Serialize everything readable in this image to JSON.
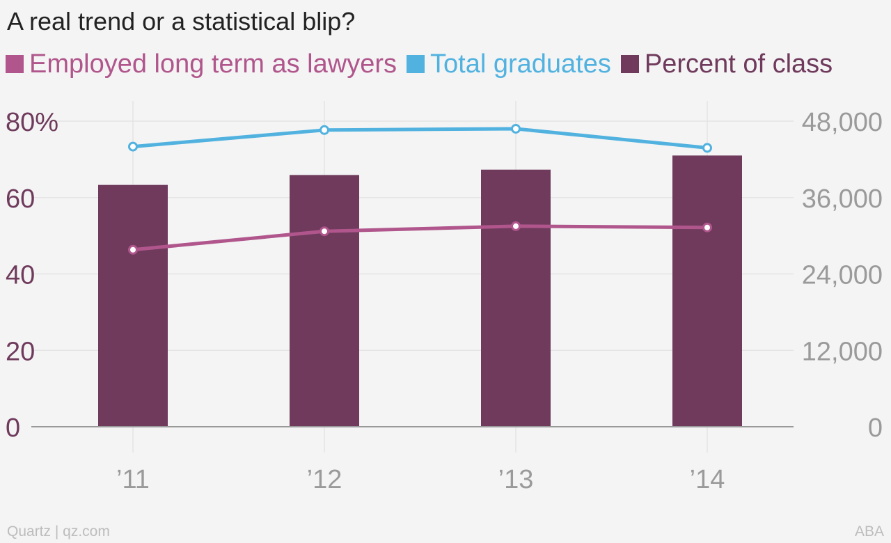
{
  "title": "A real trend or a statistical blip?",
  "footer": {
    "source_left": "Quartz | qz.com",
    "source_right": "ABA"
  },
  "colors": {
    "employed": "#b0568c",
    "graduates": "#51b2e0",
    "percent": "#6f3a5c",
    "left_axis_text": "#6f3a5c",
    "right_axis_text": "#9a9a9a",
    "grid": "#e4e4e4",
    "baseline": "#9a9a9a"
  },
  "legend": [
    {
      "label": "Employed long term as lawyers",
      "color": "#b0568c"
    },
    {
      "label": "Total graduates",
      "color": "#51b2e0"
    },
    {
      "label": "Percent of class",
      "color": "#6f3a5c"
    }
  ],
  "chart_data": {
    "type": "bar",
    "title": "A real trend or a statistical blip?",
    "categories": [
      "’11",
      "’12",
      "’13",
      "’14"
    ],
    "xlabel": "",
    "ylabel": "",
    "y_left": {
      "ylim": [
        0,
        80
      ],
      "ticks": [
        0,
        20,
        40,
        60,
        80
      ],
      "tick_labels": [
        "0",
        "20",
        "40",
        "60",
        "80%"
      ]
    },
    "y_right": {
      "ylim": [
        0,
        48000
      ],
      "ticks": [
        0,
        12000,
        24000,
        36000,
        48000
      ],
      "tick_labels": [
        "0",
        "12,000",
        "24,000",
        "36,000",
        "48,000"
      ]
    },
    "grid": true,
    "legend_position": "top-left",
    "series": [
      {
        "name": "Percent of class",
        "type": "bar",
        "axis": "left",
        "values": [
          63.3,
          65.9,
          67.3,
          71.0
        ]
      },
      {
        "name": "Total graduates",
        "type": "line",
        "axis": "right",
        "values": [
          44000,
          46600,
          46800,
          43800
        ]
      },
      {
        "name": "Employed long term as lawyers",
        "type": "line",
        "axis": "right",
        "values": [
          27800,
          30700,
          31500,
          31300
        ]
      }
    ]
  }
}
